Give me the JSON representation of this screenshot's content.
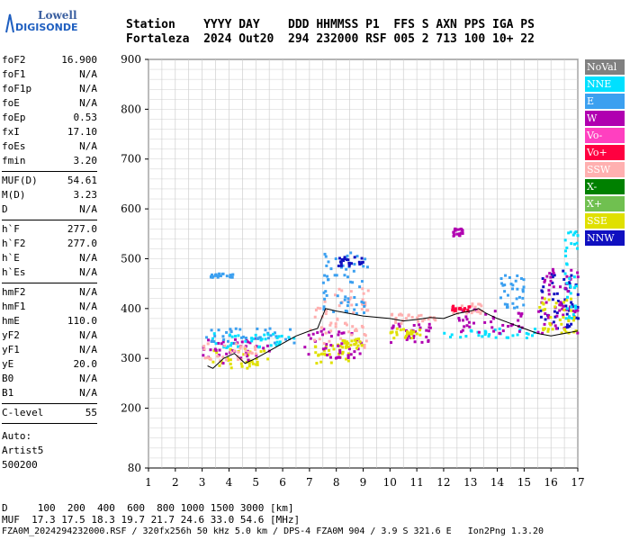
{
  "logo": {
    "line1": "Lowell",
    "line2": "DIGISONDE"
  },
  "header": {
    "row1": "Station    YYYY DAY    DDD HHMMSS P1  FFS S AXN PPS IGA PS",
    "row2": "Fortaleza  2024 Out20  294 232000 RSF 005 2 713 100 10+ 22"
  },
  "params_group1": [
    {
      "name": "foF2",
      "value": "16.900"
    },
    {
      "name": "foF1",
      "value": "N/A"
    },
    {
      "name": "foF1p",
      "value": "N/A"
    },
    {
      "name": "foE",
      "value": "N/A"
    },
    {
      "name": "foEp",
      "value": "0.53"
    },
    {
      "name": "fxI",
      "value": "17.10"
    },
    {
      "name": "foEs",
      "value": "N/A"
    },
    {
      "name": "fmin",
      "value": "3.20"
    }
  ],
  "params_group2": [
    {
      "name": "MUF(D)",
      "value": "54.61"
    },
    {
      "name": "M(D)",
      "value": "3.23"
    },
    {
      "name": "D",
      "value": "N/A"
    }
  ],
  "params_group3": [
    {
      "name": "h`F",
      "value": "277.0"
    },
    {
      "name": "h`F2",
      "value": "277.0"
    },
    {
      "name": "h`E",
      "value": "N/A"
    },
    {
      "name": "h`Es",
      "value": "N/A"
    }
  ],
  "params_group4": [
    {
      "name": "hmF2",
      "value": "N/A"
    },
    {
      "name": "hmF1",
      "value": "N/A"
    },
    {
      "name": "hmE",
      "value": "110.0"
    },
    {
      "name": "yF2",
      "value": "N/A"
    },
    {
      "name": "yF1",
      "value": "N/A"
    },
    {
      "name": "yE",
      "value": "20.0"
    },
    {
      "name": "B0",
      "value": "N/A"
    },
    {
      "name": "B1",
      "value": "N/A"
    }
  ],
  "clevel": {
    "name": "C-level",
    "value": "55"
  },
  "auto": {
    "line1": "Auto:",
    "line2": "Artist5",
    "line3": "500200"
  },
  "legend": [
    {
      "label": "NoVal",
      "color": "#808080"
    },
    {
      "label": "NNE",
      "color": "#00e0ff"
    },
    {
      "label": "E",
      "color": "#3ca0f0"
    },
    {
      "label": "W",
      "color": "#b000b0"
    },
    {
      "label": "Vo-",
      "color": "#ff40c0"
    },
    {
      "label": "Vo+",
      "color": "#ff0040"
    },
    {
      "label": "SSW",
      "color": "#ffb0b0"
    },
    {
      "label": "X-",
      "color": "#008000"
    },
    {
      "label": "X+",
      "color": "#70c050"
    },
    {
      "label": "SSE",
      "color": "#e0e000"
    },
    {
      "label": "NNW",
      "color": "#1010c0"
    }
  ],
  "chart_data": {
    "type": "scatter",
    "title": "",
    "xlabel": "",
    "ylabel": "",
    "xlim": [
      1,
      17
    ],
    "ylim": [
      80,
      900
    ],
    "x_ticks": [
      1,
      2,
      3,
      4,
      5,
      6,
      7,
      8,
      9,
      10,
      11,
      12,
      13,
      14,
      15,
      16,
      17
    ],
    "y_ticks": [
      80,
      200,
      300,
      400,
      500,
      600,
      700,
      800,
      900
    ],
    "grid": true,
    "trace": {
      "name": "",
      "x": [
        3.2,
        3.4,
        3.6,
        3.8,
        4.0,
        4.2,
        4.4,
        4.6,
        4.8,
        5.0,
        5.5,
        6.0,
        6.5,
        7.0,
        7.3,
        7.6,
        8.0,
        8.5,
        9.0,
        10.0,
        10.5,
        11.0,
        11.5,
        12.0,
        12.5,
        13.0,
        13.3,
        13.6,
        14.0,
        14.5,
        15.0,
        15.5,
        16.0,
        16.5,
        17.0
      ],
      "y": [
        285,
        280,
        290,
        300,
        305,
        310,
        300,
        290,
        295,
        300,
        315,
        330,
        345,
        355,
        360,
        400,
        395,
        390,
        385,
        380,
        375,
        378,
        382,
        380,
        390,
        395,
        400,
        390,
        380,
        370,
        360,
        350,
        345,
        350,
        355
      ]
    },
    "clusters": [
      {
        "cls": "SSE",
        "x": [
          3.0,
          5.5
        ],
        "y": [
          280,
          320
        ]
      },
      {
        "cls": "W",
        "x": [
          3.0,
          5.5
        ],
        "y": [
          290,
          340
        ]
      },
      {
        "cls": "E",
        "x": [
          3.0,
          6.5
        ],
        "y": [
          330,
          360
        ]
      },
      {
        "cls": "NNE",
        "x": [
          3.3,
          6.5
        ],
        "y": [
          320,
          350
        ]
      },
      {
        "cls": "SSW",
        "x": [
          3.0,
          5.0
        ],
        "y": [
          295,
          330
        ]
      },
      {
        "cls": "E",
        "x": [
          3.3,
          4.2
        ],
        "y": [
          462,
          470
        ]
      },
      {
        "cls": "SSE",
        "x": [
          7.0,
          8.5
        ],
        "y": [
          290,
          330
        ]
      },
      {
        "cls": "W",
        "x": [
          6.8,
          9.0
        ],
        "y": [
          300,
          360
        ]
      },
      {
        "cls": "SSW",
        "x": [
          7.0,
          9.2
        ],
        "y": [
          320,
          440
        ]
      },
      {
        "cls": "E",
        "x": [
          7.5,
          9.2
        ],
        "y": [
          390,
          520
        ]
      },
      {
        "cls": "NNW",
        "x": [
          8.0,
          9.0
        ],
        "y": [
          485,
          505
        ]
      },
      {
        "cls": "SSE",
        "x": [
          8.2,
          9.0
        ],
        "y": [
          320,
          340
        ]
      },
      {
        "cls": "W",
        "x": [
          10.0,
          11.5
        ],
        "y": [
          330,
          370
        ]
      },
      {
        "cls": "SSE",
        "x": [
          10.0,
          11.2
        ],
        "y": [
          340,
          360
        ]
      },
      {
        "cls": "SSW",
        "x": [
          10.0,
          11.8
        ],
        "y": [
          370,
          390
        ]
      },
      {
        "cls": "NNE",
        "x": [
          12.0,
          15.5
        ],
        "y": [
          340,
          360
        ]
      },
      {
        "cls": "W",
        "x": [
          12.5,
          15.0
        ],
        "y": [
          350,
          400
        ]
      },
      {
        "cls": "SSW",
        "x": [
          12.3,
          13.5
        ],
        "y": [
          390,
          410
        ]
      },
      {
        "cls": "Vo+",
        "x": [
          12.3,
          13.0
        ],
        "y": [
          395,
          405
        ]
      },
      {
        "cls": "W",
        "x": [
          12.3,
          12.7
        ],
        "y": [
          545,
          560
        ]
      },
      {
        "cls": "NNW",
        "x": [
          15.5,
          17.0
        ],
        "y": [
          360,
          480
        ]
      },
      {
        "cls": "W",
        "x": [
          15.5,
          17.0
        ],
        "y": [
          350,
          490
        ]
      },
      {
        "cls": "SSE",
        "x": [
          15.5,
          17.0
        ],
        "y": [
          350,
          420
        ]
      },
      {
        "cls": "NNE",
        "x": [
          16.5,
          17.0
        ],
        "y": [
          380,
          560
        ]
      },
      {
        "cls": "E",
        "x": [
          14.0,
          15.0
        ],
        "y": [
          400,
          470
        ]
      }
    ]
  },
  "footer": {
    "d_row": "D     100  200  400  600  800 1000 1500 3000 [km]",
    "muf_row": "MUF  17.3 17.5 18.3 19.7 21.7 24.6 33.0 54.6 [MHz]",
    "file_row": "FZA0M_2024294232000.RSF / 320fx256h 50 kHz 5.0 km / DPS-4 FZA0M 904 / 3.9 S 321.6 E   Ion2Png 1.3.20"
  }
}
